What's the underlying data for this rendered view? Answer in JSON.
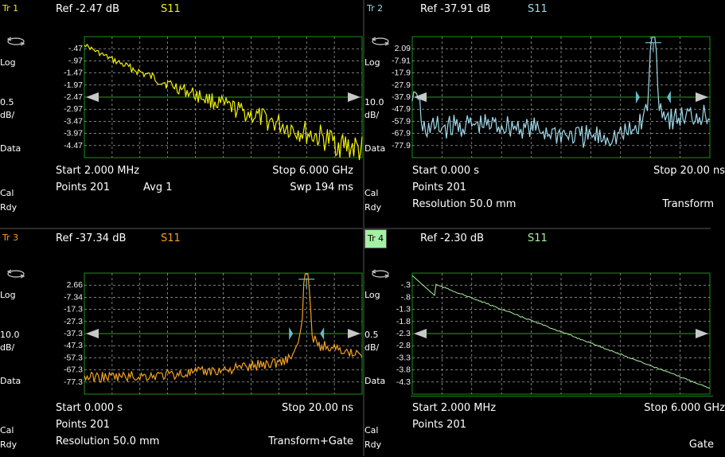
{
  "colors": {
    "tr1": "#f0f000",
    "tr2": "#a0d8e8",
    "tr3": "#f0a020",
    "tr4": "#a8f0a0",
    "grid": "#1d8c1d",
    "active_tab": "#a4f0a4"
  },
  "icons": {
    "response": "rotate-arrows-icon",
    "ref_marker": "reference-arrow-icon",
    "gate": "gate-marker-icon"
  },
  "traces": [
    {
      "id": "Tr 1",
      "ref": "Ref -2.47 dB",
      "param": "S11",
      "scale_format": "Log",
      "scale_value": "0.5",
      "scale_unit": "dB/",
      "memory": "Data",
      "y_ticks": [
        "-.47",
        "-.97",
        "-1.47",
        "-1.97",
        "-2.47",
        "-2.97",
        "-3.47",
        "-3.97",
        "-4.47"
      ],
      "start": "Start 2.000 MHz",
      "stop": "Stop 6.000 GHz",
      "points": "Points 201",
      "avg": "Avg  1",
      "swp": "Swp 194 ms",
      "cal1": "Cal",
      "cal2": "Rdy",
      "extra": "",
      "mode": "",
      "active": false
    },
    {
      "id": "Tr 2",
      "ref": "Ref -37.91 dB",
      "param": "S11",
      "scale_format": "Log",
      "scale_value": "10.0",
      "scale_unit": "dB/",
      "memory": "Data",
      "y_ticks": [
        "2.09",
        "-7.91",
        "-17.9",
        "-27.9",
        "-37.9",
        "-47.9",
        "-57.9",
        "-67.9",
        "-77.9"
      ],
      "start": "Start 0.000 s",
      "stop": "Stop 20.00 ns",
      "points": "Points 201",
      "avg": "",
      "swp": "",
      "cal1": "Cal",
      "cal2": "Rdy",
      "extra": "Resolution 50.0 mm",
      "mode": "Transform",
      "active": false
    },
    {
      "id": "Tr 3",
      "ref": "Ref -37.34 dB",
      "param": "S11",
      "scale_format": "Log",
      "scale_value": "10.0",
      "scale_unit": "dB/",
      "memory": "Data",
      "y_ticks": [
        "2.66",
        "-7.34",
        "-17.3",
        "-27.3",
        "-37.3",
        "-47.3",
        "-57.3",
        "-67.3",
        "-77.3"
      ],
      "start": "Start 0.000 s",
      "stop": "Stop 20.00 ns",
      "points": "Points 201",
      "avg": "",
      "swp": "",
      "cal1": "Cal",
      "cal2": "Rdy",
      "extra": "Resolution 50.0 mm",
      "mode": "Transform+Gate",
      "active": false
    },
    {
      "id": "Tr 4",
      "ref": "Ref -2.30 dB",
      "param": "S11",
      "scale_format": "Log",
      "scale_value": "0.5",
      "scale_unit": "dB/",
      "memory": "Data",
      "y_ticks": [
        "-.3",
        "-.8",
        "-1.3",
        "-1.8",
        "-2.3",
        "-2.8",
        "-3.3",
        "-3.8",
        "-4.3"
      ],
      "start": "Start 2.000 MHz",
      "stop": "Stop 6.000 GHz",
      "points": "Points 201",
      "avg": "",
      "swp": "",
      "cal1": "Cal",
      "cal2": "Rdy",
      "extra": "",
      "mode": "Gate",
      "active": true
    }
  ]
}
